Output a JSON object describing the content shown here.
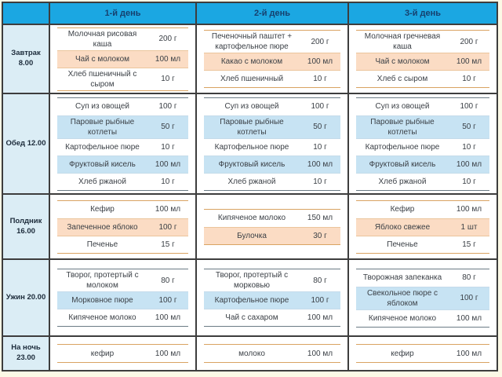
{
  "title": "Meal plan table (diet menu by day)",
  "colors": {
    "header_bg": "#1BA7E2",
    "header_text": "#16406E",
    "label_bg": "#DBEDF5",
    "page_bg": "#FCF9E6",
    "grid_line": "#3D3D3D",
    "highlight_warm": "#FBDCC4",
    "highlight_cool": "#C7E3F3",
    "rule_warm": "#D9A362",
    "rule_cool": "#6B7B85"
  },
  "table": {
    "day_headers": [
      "1-й день",
      "2-й день",
      "3-й день"
    ],
    "rows": [
      {
        "label_lines": [
          "Завтрак 8.00"
        ],
        "theme": "warm",
        "days": [
          {
            "items": [
              {
                "name": "Молочная рисовая каша",
                "amount": "200 г",
                "highlight": false
              },
              {
                "name": "Чай с молоком",
                "amount": "100 мл",
                "highlight": true
              },
              {
                "name": "Хлеб пшеничный с сыром",
                "amount": "10 г",
                "highlight": false
              }
            ]
          },
          {
            "items": [
              {
                "name": "Печеночный паштет + картофельное пюре",
                "amount": "200 г",
                "highlight": false
              },
              {
                "name": "Какао с молоком",
                "amount": "100 мл",
                "highlight": true
              },
              {
                "name": "Хлеб пшеничный",
                "amount": "10 г",
                "highlight": false
              }
            ]
          },
          {
            "items": [
              {
                "name": "Молочная гречневая каша",
                "amount": "200 г",
                "highlight": false
              },
              {
                "name": "Чай с молоком",
                "amount": "100 мл",
                "highlight": true
              },
              {
                "name": "Хлеб с сыром",
                "amount": "10 г",
                "highlight": false
              }
            ]
          }
        ]
      },
      {
        "label_lines": [
          "Обед 12.00"
        ],
        "theme": "cool",
        "days": [
          {
            "items": [
              {
                "name": "Суп из овощей",
                "amount": "100 г",
                "highlight": false
              },
              {
                "name": "Паровые рыбные котлеты",
                "amount": "50 г",
                "highlight": true
              },
              {
                "name": "Картофельное пюре",
                "amount": "10 г",
                "highlight": false
              },
              {
                "name": "Фруктовый кисель",
                "amount": "100 мл",
                "highlight": true
              },
              {
                "name": "Хлеб ржаной",
                "amount": "10 г",
                "highlight": false
              }
            ]
          },
          {
            "items": [
              {
                "name": "Суп из овощей",
                "amount": "100 г",
                "highlight": false
              },
              {
                "name": "Паровые рыбные котлеты",
                "amount": "50 г",
                "highlight": true
              },
              {
                "name": "Картофельное пюре",
                "amount": "10 г",
                "highlight": false
              },
              {
                "name": "Фруктовый кисель",
                "amount": "100 мл",
                "highlight": true
              },
              {
                "name": "Хлеб ржаной",
                "amount": "10 г",
                "highlight": false
              }
            ]
          },
          {
            "items": [
              {
                "name": "Суп из овощей",
                "amount": "100 г",
                "highlight": false
              },
              {
                "name": "Паровые рыбные котлеты",
                "amount": "50 г",
                "highlight": true
              },
              {
                "name": "Картофельное пюре",
                "amount": "10 г",
                "highlight": false
              },
              {
                "name": "Фруктовый кисель",
                "amount": "100 мл",
                "highlight": true
              },
              {
                "name": "Хлеб ржаной",
                "amount": "10 г",
                "highlight": false
              }
            ]
          }
        ]
      },
      {
        "label_lines": [
          "Полдник",
          "16.00"
        ],
        "theme": "warm",
        "days": [
          {
            "items": [
              {
                "name": "Кефир",
                "amount": "100 мл",
                "highlight": false
              },
              {
                "name": "Запеченное яблоко",
                "amount": "100 г",
                "highlight": true
              },
              {
                "name": "Печенье",
                "amount": "15 г",
                "highlight": false
              }
            ]
          },
          {
            "items": [
              {
                "name": "Кипяченое молоко",
                "amount": "150 мл",
                "highlight": false
              },
              {
                "name": "Булочка",
                "amount": "30 г",
                "highlight": true
              }
            ]
          },
          {
            "items": [
              {
                "name": "Кефир",
                "amount": "100 мл",
                "highlight": false
              },
              {
                "name": "Яблоко свежее",
                "amount": "1 шт",
                "highlight": true
              },
              {
                "name": "Печенье",
                "amount": "15 г",
                "highlight": false
              }
            ]
          }
        ]
      },
      {
        "label_lines": [
          "Ужин 20.00"
        ],
        "theme": "cool",
        "days": [
          {
            "items": [
              {
                "name": "Творог, протертый с молоком",
                "amount": "80 г",
                "highlight": false
              },
              {
                "name": "Морковное пюре",
                "amount": "100 г",
                "highlight": true
              },
              {
                "name": "Кипяченое молоко",
                "amount": "100 мл",
                "highlight": false
              }
            ]
          },
          {
            "items": [
              {
                "name": "Творог, протертый с морковью",
                "amount": "80 г",
                "highlight": false
              },
              {
                "name": "Картофельное пюре",
                "amount": "100 г",
                "highlight": true
              },
              {
                "name": "Чай с сахаром",
                "amount": "100 мл",
                "highlight": false
              }
            ]
          },
          {
            "items": [
              {
                "name": "Творожная запеканка",
                "amount": "80 г",
                "highlight": false
              },
              {
                "name": "Свекольное пюре с яблоком",
                "amount": "100 г",
                "highlight": true
              },
              {
                "name": "Кипяченое молоко",
                "amount": "100 мл",
                "highlight": false
              }
            ]
          }
        ]
      },
      {
        "label_lines": [
          "На ночь 23.00"
        ],
        "theme": "warm",
        "days": [
          {
            "items": [
              {
                "name": "кефир",
                "amount": "100 мл",
                "highlight": false
              }
            ]
          },
          {
            "items": [
              {
                "name": "молоко",
                "amount": "100 мл",
                "highlight": false
              }
            ]
          },
          {
            "items": [
              {
                "name": "кефир",
                "amount": "100 мл",
                "highlight": false
              }
            ]
          }
        ]
      }
    ]
  }
}
